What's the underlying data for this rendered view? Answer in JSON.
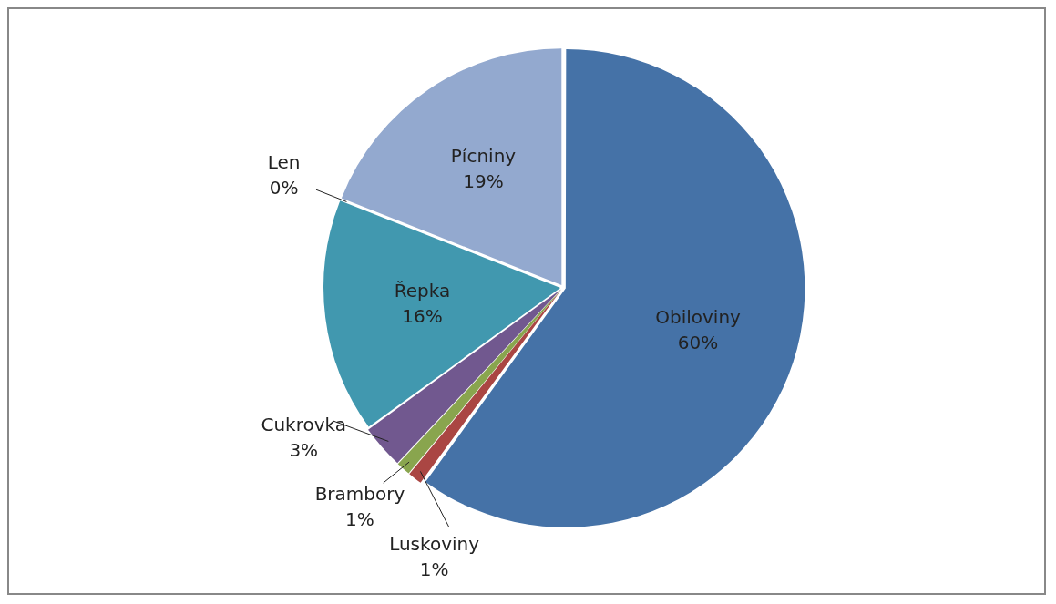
{
  "chart_data": {
    "type": "pie",
    "categories": [
      "Obiloviny",
      "Luskoviny",
      "Brambory",
      "Cukrovka",
      "Řepka",
      "Len",
      "Pícniny"
    ],
    "values": [
      60,
      1,
      1,
      3,
      16,
      0,
      19
    ],
    "value_labels": [
      "60%",
      "1%",
      "1%",
      "3%",
      "16%",
      "0%",
      "19%"
    ],
    "colors": [
      "#4572a7",
      "#aa4643",
      "#89a54e",
      "#71588f",
      "#4198af",
      "#db843d",
      "#93a9cf"
    ],
    "legend": false
  }
}
